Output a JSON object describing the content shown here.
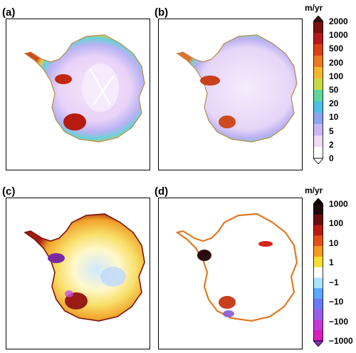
{
  "panels": [
    {
      "label": "(a)"
    },
    {
      "label": "(b)"
    },
    {
      "label": "(c)"
    },
    {
      "label": "(d)"
    }
  ],
  "colorbar_top": {
    "unit": "m/yr",
    "ticks": [
      "2000",
      "1000",
      "500",
      "200",
      "100",
      "50",
      "20",
      "10",
      "5",
      "2",
      "0"
    ],
    "colors": [
      "#7a1010",
      "#b31b1b",
      "#d8401a",
      "#ee7a20",
      "#f6b730",
      "#c8d94a",
      "#5fd69a",
      "#4fc0e8",
      "#8ea4f0",
      "#c9b8f3",
      "#f0d9f5",
      "#ffffff"
    ],
    "top_arrow_color": "#3a1010",
    "bottom_arrow_color": "#ffffff"
  },
  "colorbar_bottom": {
    "unit": "m/yr",
    "ticks": [
      "1000",
      "100",
      "10",
      "1",
      "−1",
      "−10",
      "−100",
      "−1000"
    ],
    "colors": [
      "#1a0a0a",
      "#6b0d0d",
      "#b81c14",
      "#e2501a",
      "#f29a22",
      "#f7dd35",
      "#ffffff",
      "#a9e5ff",
      "#5aa8ff",
      "#6a7bf5",
      "#9b5ee8",
      "#c33ad6",
      "#d61fc0"
    ],
    "top_arrow_color": "#0a0505",
    "bottom_arrow_color": "#8a2ab0"
  }
}
